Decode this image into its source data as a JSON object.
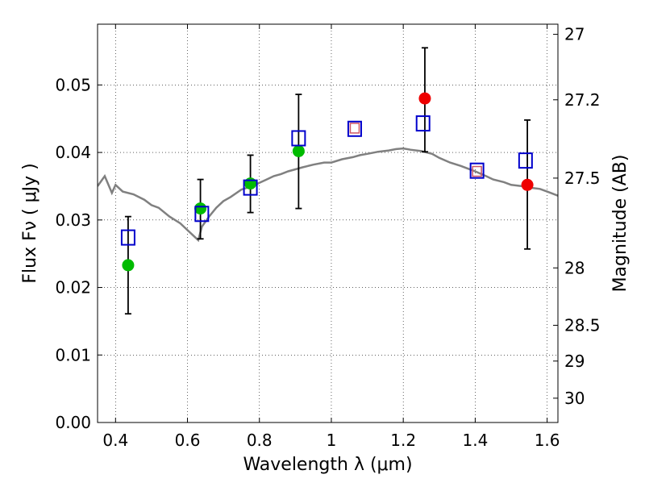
{
  "chart_data": {
    "type": "scatter",
    "xlabel": "Wavelength  λ (μm)",
    "ylabel": "Flux  Fν  ( μJy )",
    "y2label": "Magnitude (AB)",
    "xlim": [
      0.35,
      1.63
    ],
    "ylim": [
      0.0,
      0.059
    ],
    "grid": true,
    "x_ticks": [
      0.4,
      0.6,
      0.8,
      1.0,
      1.2,
      1.4,
      1.6
    ],
    "x_tick_labels": [
      "0.4",
      "0.6",
      "0.8",
      "1",
      "1.2",
      "1.4",
      "1.6"
    ],
    "y_ticks": [
      0.0,
      0.01,
      0.02,
      0.03,
      0.04,
      0.05
    ],
    "y_tick_labels": [
      "0.00",
      "0.01",
      "0.02",
      "0.03",
      "0.04",
      "0.05"
    ],
    "y2_ticks": [
      {
        "label": "27",
        "flux": 0.0575
      },
      {
        "label": "27.2",
        "flux": 0.0478
      },
      {
        "label": "27.5",
        "flux": 0.0362
      },
      {
        "label": "28",
        "flux": 0.0229
      },
      {
        "label": "28.5",
        "flux": 0.0144
      },
      {
        "label": "29",
        "flux": 0.0091
      },
      {
        "label": "30",
        "flux": 0.0036
      }
    ],
    "colors": {
      "model": "#808080",
      "green": "#00bb00",
      "red": "#ee0000",
      "blue": "#0000cc",
      "pink": "#cc5566",
      "errorbar": "#000000"
    },
    "model_spectrum": {
      "name": "",
      "x": [
        0.35,
        0.37,
        0.39,
        0.4,
        0.42,
        0.45,
        0.48,
        0.5,
        0.52,
        0.55,
        0.58,
        0.6,
        0.62,
        0.63,
        0.64,
        0.66,
        0.68,
        0.7,
        0.72,
        0.75,
        0.78,
        0.8,
        0.82,
        0.84,
        0.86,
        0.88,
        0.9,
        0.92,
        0.95,
        0.98,
        1.0,
        1.03,
        1.06,
        1.08,
        1.1,
        1.13,
        1.16,
        1.18,
        1.2,
        1.22,
        1.25,
        1.28,
        1.3,
        1.33,
        1.36,
        1.38,
        1.4,
        1.43,
        1.45,
        1.48,
        1.5,
        1.53,
        1.55,
        1.58,
        1.6,
        1.63
      ],
      "y": [
        0.035,
        0.0365,
        0.034,
        0.0352,
        0.0342,
        0.0338,
        0.033,
        0.0322,
        0.0318,
        0.0305,
        0.0295,
        0.0285,
        0.0275,
        0.027,
        0.029,
        0.0305,
        0.0318,
        0.0328,
        0.0334,
        0.0345,
        0.035,
        0.0355,
        0.036,
        0.0365,
        0.0368,
        0.0372,
        0.0375,
        0.0378,
        0.0382,
        0.0385,
        0.0385,
        0.039,
        0.0393,
        0.0396,
        0.0398,
        0.0401,
        0.0403,
        0.0405,
        0.0406,
        0.0404,
        0.0402,
        0.0398,
        0.0392,
        0.0385,
        0.038,
        0.0376,
        0.0372,
        0.0365,
        0.036,
        0.0356,
        0.0352,
        0.035,
        0.0348,
        0.0346,
        0.0342,
        0.0336
      ]
    },
    "series": [
      {
        "name": "",
        "marker": "circle-green",
        "points": [
          {
            "x": 0.435,
            "y": 0.0233,
            "yerr_low": 0.0161,
            "yerr_high": 0.0305
          },
          {
            "x": 0.636,
            "y": 0.0317,
            "yerr_low": 0.0272,
            "yerr_high": 0.036
          },
          {
            "x": 0.775,
            "y": 0.0354,
            "yerr_low": 0.0311,
            "yerr_high": 0.0396
          },
          {
            "x": 0.909,
            "y": 0.0402,
            "yerr_low": 0.0317,
            "yerr_high": 0.0486
          }
        ]
      },
      {
        "name": "",
        "marker": "circle-red",
        "points": [
          {
            "x": 1.26,
            "y": 0.048,
            "yerr_low": 0.0401,
            "yerr_high": 0.0555
          },
          {
            "x": 1.545,
            "y": 0.0352,
            "yerr_low": 0.0257,
            "yerr_high": 0.0448
          }
        ]
      },
      {
        "name": "",
        "marker": "square-blue",
        "points": [
          {
            "x": 0.435,
            "y": 0.0274
          },
          {
            "x": 0.64,
            "y": 0.0309
          },
          {
            "x": 0.775,
            "y": 0.0348
          },
          {
            "x": 0.909,
            "y": 0.0421
          },
          {
            "x": 1.065,
            "y": 0.0435
          },
          {
            "x": 1.255,
            "y": 0.0443
          },
          {
            "x": 1.405,
            "y": 0.0373
          },
          {
            "x": 1.54,
            "y": 0.0388
          }
        ]
      },
      {
        "name": "",
        "marker": "square-pink",
        "points": [
          {
            "x": 1.065,
            "y": 0.0436
          },
          {
            "x": 1.405,
            "y": 0.0372
          }
        ]
      }
    ]
  }
}
